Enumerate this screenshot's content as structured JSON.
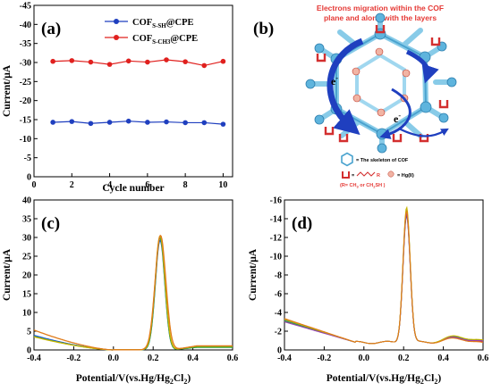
{
  "chart_data": [
    {
      "type": "line",
      "panel_label": "(a)",
      "x": [
        1,
        2,
        3,
        4,
        5,
        6,
        7,
        8,
        9,
        10
      ],
      "xlabel": "Cycle number",
      "ylabel": "Current/μA",
      "xlim": [
        0,
        10.5
      ],
      "ylim": [
        0,
        -45
      ],
      "xticks": [
        0,
        2,
        4,
        6,
        8,
        10
      ],
      "yticks": [
        0,
        -5,
        -10,
        -15,
        -20,
        -25,
        -30,
        -35,
        -40,
        -45
      ],
      "legend_position": "top-right",
      "series": [
        {
          "name_main": "COF",
          "name_sub": "S-SH",
          "name_tail": "@CPE",
          "color": "#1f3fbf",
          "marker": "circle",
          "values": [
            -14.3,
            -14.5,
            -14.0,
            -14.3,
            -14.6,
            -14.3,
            -14.4,
            -14.2,
            -14.2,
            -13.8
          ]
        },
        {
          "name_main": "COF",
          "name_sub": "S-CH3",
          "name_tail": "@CPE",
          "color": "#e0201e",
          "marker": "circle",
          "values": [
            -30.3,
            -30.5,
            -30.1,
            -29.5,
            -30.4,
            -30.1,
            -30.7,
            -30.2,
            -29.2,
            -30.3
          ]
        }
      ]
    },
    {
      "type": "line",
      "panel_label": "(c)",
      "xlabel_main": "Potential/V(vs.Hg/Hg",
      "xlabel_sub": "2",
      "xlabel_mid": "Cl",
      "xlabel_sub2": "2",
      "xlabel_tail": ")",
      "ylabel": "Current/μA",
      "xlim": [
        -0.4,
        0.6
      ],
      "ylim": [
        0,
        40
      ],
      "xticks": [
        -0.4,
        -0.2,
        0.0,
        0.2,
        0.4,
        0.6
      ],
      "yticks": [
        0,
        5,
        10,
        15,
        20,
        25,
        30,
        35,
        40
      ],
      "series": [
        {
          "color": "#1e5bd6",
          "peak_x": 0.235,
          "peak_y": 29.2,
          "width": 0.024,
          "base_end": 0.8,
          "start_y": 3.9
        },
        {
          "color": "#2e9e3b",
          "peak_x": 0.235,
          "peak_y": 29.8,
          "width": 0.024,
          "base_end": 0.7,
          "start_y": 3.6
        },
        {
          "color": "#c8b400",
          "peak_x": 0.235,
          "peak_y": 30.4,
          "width": 0.025,
          "base_end": 1.0,
          "start_y": 3.5
        },
        {
          "color": "#e07b1a",
          "peak_x": 0.237,
          "peak_y": 30.5,
          "width": 0.027,
          "base_end": 1.1,
          "start_y": 5.3
        }
      ]
    },
    {
      "type": "line",
      "panel_label": "(d)",
      "xlabel_main": "Potential/V(vs.Hg/Hg",
      "xlabel_sub": "2",
      "xlabel_mid": "Cl",
      "xlabel_sub2": "2",
      "xlabel_tail": ")",
      "ylabel": "Current/μA",
      "xlim": [
        -0.4,
        0.6
      ],
      "ylim": [
        0,
        -16
      ],
      "xticks": [
        -0.4,
        -0.2,
        0.0,
        0.2,
        0.4,
        0.6
      ],
      "yticks": [
        0,
        -2,
        -4,
        -6,
        -8,
        -10,
        -12,
        -14,
        -16
      ],
      "series": [
        {
          "color": "#1e5bd6",
          "peak_y": -13.6,
          "start_y": -3.2,
          "hump_y": -1.25,
          "end_y": -0.75
        },
        {
          "color": "#d93a2b",
          "peak_y": -13.8,
          "start_y": -3.3,
          "hump_y": -1.15,
          "end_y": -0.7
        },
        {
          "color": "#2e9e3b",
          "peak_y": -14.2,
          "start_y": -3.1,
          "hump_y": -1.3,
          "end_y": -0.85
        },
        {
          "color": "#9b3fb5",
          "peak_y": -14.0,
          "start_y": -3.0,
          "hump_y": -1.2,
          "end_y": -0.8
        },
        {
          "color": "#c8b400",
          "peak_y": -14.5,
          "start_y": -3.25,
          "hump_y": -1.35,
          "end_y": -0.9
        },
        {
          "color": "#e07b1a",
          "peak_y": -14.1,
          "start_y": -3.35,
          "hump_y": -1.1,
          "end_y": -0.65
        }
      ]
    }
  ],
  "schematic": {
    "panel_label": "(b)",
    "title_line1": "Electrons migration within the COF",
    "title_line2": "plane and along with the layers",
    "electron_label": "e",
    "electron_sup": "-",
    "legend_skeleton": "= The skeleton of COF",
    "legend_r_symbol": "U",
    "legend_r_eq": "=",
    "legend_r_def": "(R= CH",
    "legend_r_sub1": "3",
    "legend_r_mid": " or CH",
    "legend_r_sub2": "2",
    "legend_r_tail": "SH )",
    "legend_r_char": "R",
    "legend_hg": "= Hg(II)"
  }
}
